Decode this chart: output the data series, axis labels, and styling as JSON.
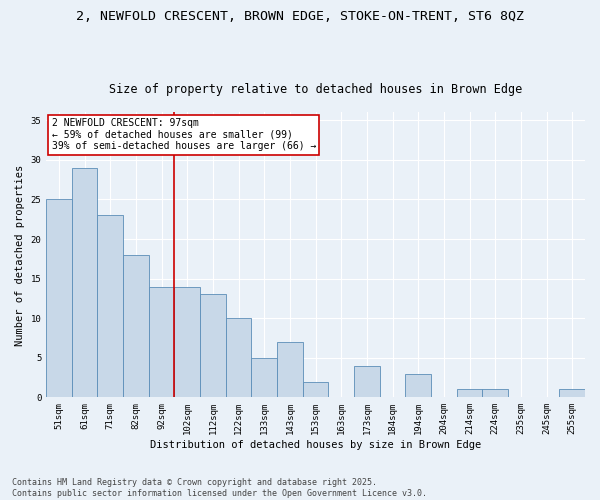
{
  "title1": "2, NEWFOLD CRESCENT, BROWN EDGE, STOKE-ON-TRENT, ST6 8QZ",
  "title2": "Size of property relative to detached houses in Brown Edge",
  "xlabel": "Distribution of detached houses by size in Brown Edge",
  "ylabel": "Number of detached properties",
  "categories": [
    "51sqm",
    "61sqm",
    "71sqm",
    "82sqm",
    "92sqm",
    "102sqm",
    "112sqm",
    "122sqm",
    "133sqm",
    "143sqm",
    "153sqm",
    "163sqm",
    "173sqm",
    "184sqm",
    "194sqm",
    "204sqm",
    "214sqm",
    "224sqm",
    "235sqm",
    "245sqm",
    "255sqm"
  ],
  "values": [
    25,
    29,
    23,
    18,
    14,
    14,
    13,
    10,
    5,
    7,
    2,
    0,
    4,
    0,
    3,
    0,
    1,
    1,
    0,
    0,
    1
  ],
  "bar_color": "#c8d8e8",
  "bar_edge_color": "#5b8db8",
  "background_color": "#eaf1f8",
  "grid_color": "#ffffff",
  "annotation_text": "2 NEWFOLD CRESCENT: 97sqm\n← 59% of detached houses are smaller (99)\n39% of semi-detached houses are larger (66) →",
  "annotation_box_color": "#ffffff",
  "annotation_box_edge": "#cc0000",
  "redline_x": 4.5,
  "ylim": [
    0,
    36
  ],
  "yticks": [
    0,
    5,
    10,
    15,
    20,
    25,
    30,
    35
  ],
  "footer": "Contains HM Land Registry data © Crown copyright and database right 2025.\nContains public sector information licensed under the Open Government Licence v3.0.",
  "title_fontsize": 9.5,
  "subtitle_fontsize": 8.5,
  "axis_label_fontsize": 7.5,
  "tick_fontsize": 6.5,
  "footer_fontsize": 6,
  "annotation_fontsize": 7
}
